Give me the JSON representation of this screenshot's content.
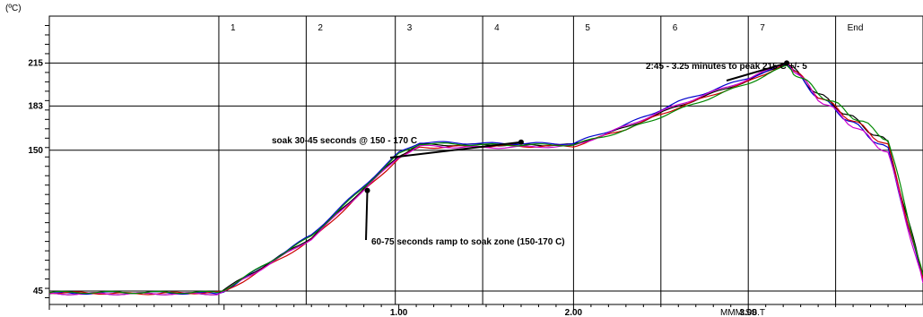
{
  "chart_data": {
    "type": "line",
    "title": "",
    "y_unit_label": "(ºC)",
    "x_unit_label": "MMM:SS.T",
    "xlim": [
      -1.0,
      4.0
    ],
    "ylim": [
      35,
      250
    ],
    "y_ticks": [
      {
        "value": 45,
        "label": "45"
      },
      {
        "value": 150,
        "label": "150"
      },
      {
        "value": 183,
        "label": "183"
      },
      {
        "value": 215,
        "label": "215"
      }
    ],
    "x_ticks": [
      {
        "value": 1.0,
        "label": "1.00"
      },
      {
        "value": 2.0,
        "label": "2.00"
      },
      {
        "value": 3.0,
        "label": "3.00"
      }
    ],
    "zones": [
      {
        "label": "1",
        "start": -0.03
      },
      {
        "label": "2",
        "start": 0.47
      },
      {
        "label": "3",
        "start": 0.98
      },
      {
        "label": "4",
        "start": 1.48
      },
      {
        "label": "5",
        "start": 2.0
      },
      {
        "label": "6",
        "start": 2.5
      },
      {
        "label": "7",
        "start": 3.0
      },
      {
        "label": "End",
        "start": 3.5
      }
    ],
    "series": [
      {
        "color": "#000000",
        "points": [
          [
            -1.0,
            43
          ],
          [
            -0.5,
            43
          ],
          [
            -0.04,
            43
          ],
          [
            0.0,
            46
          ],
          [
            0.5,
            85
          ],
          [
            1.0,
            146
          ],
          [
            1.12,
            154
          ],
          [
            1.5,
            154
          ],
          [
            2.0,
            154
          ],
          [
            2.3,
            167
          ],
          [
            2.6,
            183
          ],
          [
            3.0,
            202
          ],
          [
            3.22,
            215
          ],
          [
            3.4,
            192
          ],
          [
            3.8,
            155
          ],
          [
            4.0,
            55
          ]
        ]
      },
      {
        "color": "#0000cc",
        "points": [
          [
            -1.0,
            43
          ],
          [
            -0.5,
            44
          ],
          [
            -0.04,
            43
          ],
          [
            0.0,
            45
          ],
          [
            0.5,
            87
          ],
          [
            1.0,
            148
          ],
          [
            1.12,
            156
          ],
          [
            1.5,
            155
          ],
          [
            2.0,
            155
          ],
          [
            2.3,
            169
          ],
          [
            2.6,
            186
          ],
          [
            3.0,
            204
          ],
          [
            3.22,
            214
          ],
          [
            3.4,
            190
          ],
          [
            3.8,
            150
          ],
          [
            4.0,
            52
          ]
        ]
      },
      {
        "color": "#cc0000",
        "points": [
          [
            -1.0,
            44
          ],
          [
            -0.5,
            43
          ],
          [
            -0.04,
            44
          ],
          [
            0.0,
            44
          ],
          [
            0.5,
            83
          ],
          [
            1.0,
            144
          ],
          [
            1.12,
            152
          ],
          [
            1.5,
            153
          ],
          [
            2.0,
            153
          ],
          [
            2.3,
            166
          ],
          [
            2.6,
            182
          ],
          [
            3.0,
            201
          ],
          [
            3.22,
            215
          ],
          [
            3.4,
            191
          ],
          [
            3.8,
            153
          ],
          [
            4.0,
            54
          ]
        ]
      },
      {
        "color": "#cc00cc",
        "points": [
          [
            -1.0,
            43
          ],
          [
            -0.5,
            43
          ],
          [
            -0.04,
            43
          ],
          [
            0.0,
            45
          ],
          [
            0.5,
            84
          ],
          [
            1.0,
            145
          ],
          [
            1.12,
            153
          ],
          [
            1.5,
            152
          ],
          [
            2.0,
            153
          ],
          [
            2.3,
            168
          ],
          [
            2.6,
            184
          ],
          [
            3.0,
            203
          ],
          [
            3.22,
            216
          ],
          [
            3.4,
            189
          ],
          [
            3.8,
            148
          ],
          [
            4.0,
            51
          ]
        ]
      },
      {
        "color": "#008800",
        "points": [
          [
            -1.0,
            44
          ],
          [
            -0.5,
            44
          ],
          [
            -0.04,
            44
          ],
          [
            0.0,
            46
          ],
          [
            0.5,
            86
          ],
          [
            1.0,
            147
          ],
          [
            1.12,
            155
          ],
          [
            1.5,
            154
          ],
          [
            2.0,
            154
          ],
          [
            2.3,
            165
          ],
          [
            2.6,
            180
          ],
          [
            3.0,
            200
          ],
          [
            3.22,
            213
          ],
          [
            3.4,
            193
          ],
          [
            3.8,
            158
          ],
          [
            4.0,
            57
          ]
        ]
      }
    ],
    "annotations": [
      {
        "text": "soak 30-45 seconds @ 150 - 170 C",
        "point": [
          1.7,
          156
        ]
      },
      {
        "text": "60-75 seconds ramp to soak zone (150-170 C)",
        "point": [
          0.82,
          120
        ]
      },
      {
        "text": "2:45 - 3.25 minutes to peak 215 C +/- 5",
        "point": [
          3.22,
          215
        ]
      }
    ],
    "grid": true,
    "legend": "none"
  }
}
